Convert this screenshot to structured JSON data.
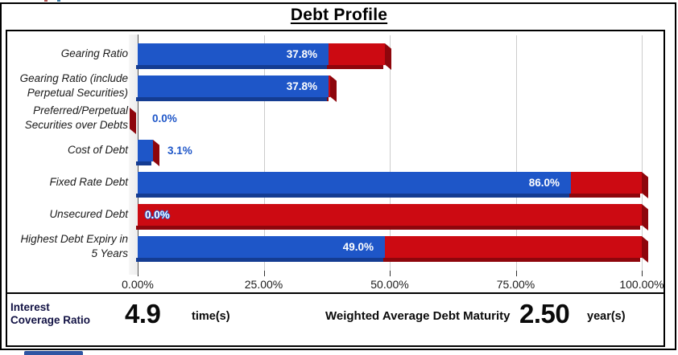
{
  "title": "Debt Profile",
  "chart_data": {
    "type": "bar",
    "orientation": "horizontal",
    "stacked": true,
    "title": "Debt Profile",
    "xlabel": "",
    "ylabel": "",
    "xlim": [
      0,
      100
    ],
    "grid": "vertical",
    "legend": "none",
    "x_axis": {
      "tick_labels": [
        "0.00%",
        "25.00%",
        "50.00%",
        "75.00%",
        "100.00%"
      ],
      "tick_values": [
        0,
        25,
        50,
        75,
        100
      ]
    },
    "categories": [
      "Gearing Ratio",
      "Gearing Ratio (include Perpetual Securities)",
      "Preferred/Perpetual Securities over Debts",
      "Cost of Debt",
      "Fixed Rate Debt",
      "Unsecured Debt",
      "Highest Debt Expiry in 5 Years"
    ],
    "series": [
      {
        "name": "value-blue",
        "values": [
          37.8,
          37.8,
          0.0,
          3.1,
          86.0,
          0.0,
          49.0
        ]
      },
      {
        "name": "remainder-red",
        "values": [
          11.2,
          0.3,
          0.0,
          0.0,
          14.0,
          100.0,
          51.0
        ]
      }
    ],
    "rows": [
      {
        "label_lines": [
          "Gearing Ratio"
        ],
        "value": 37.8,
        "value_label": "37.8%",
        "red_end": 49.0,
        "label_pos": "inside-right"
      },
      {
        "label_lines": [
          "Gearing Ratio (include",
          "Perpetual Securities)"
        ],
        "value": 37.8,
        "value_label": "37.8%",
        "red_end": 38.1,
        "label_pos": "inside-right"
      },
      {
        "label_lines": [
          "Preferred/Perpetual",
          "Securities over Debts"
        ],
        "value": 0.0,
        "value_label": "0.0%",
        "red_end": 0.0,
        "label_pos": "outside"
      },
      {
        "label_lines": [
          "Cost of Debt"
        ],
        "value": 3.1,
        "value_label": "3.1%",
        "red_end": 3.1,
        "label_pos": "outside"
      },
      {
        "label_lines": [
          "Fixed Rate Debt"
        ],
        "value": 86.0,
        "value_label": "86.0%",
        "red_end": 100.0,
        "label_pos": "inside-right"
      },
      {
        "label_lines": [
          "Unsecured Debt"
        ],
        "value": 0.0,
        "value_label": "0.0%",
        "red_end": 100.0,
        "label_pos": "inside-left"
      },
      {
        "label_lines": [
          "Highest Debt Expiry in",
          "5 Years"
        ],
        "value": 49.0,
        "value_label": "49.0%",
        "red_end": 100.0,
        "label_pos": "inside-right"
      }
    ]
  },
  "colors": {
    "bar_blue": "#1e56c8",
    "bar_blue_dark": "#143c92",
    "bar_red": "#cc0a12",
    "bar_red_dark": "#8e060c",
    "gridline": "#cccccc",
    "wall_gray": "#ededed",
    "outside_label_blue": "#1e56c8",
    "bottom_strip_blue": "#2e55a3",
    "speck_red": "#b05050",
    "speck_teal": "#3a7ca8"
  },
  "stats": {
    "icr_label_line1": "Interest",
    "icr_label_line2": "Coverage Ratio",
    "icr_value": "4.9",
    "icr_unit": "time(s)",
    "wadm_label": "Weighted Average Debt Maturity",
    "wadm_value": "2.50",
    "wadm_unit": "year(s)"
  }
}
